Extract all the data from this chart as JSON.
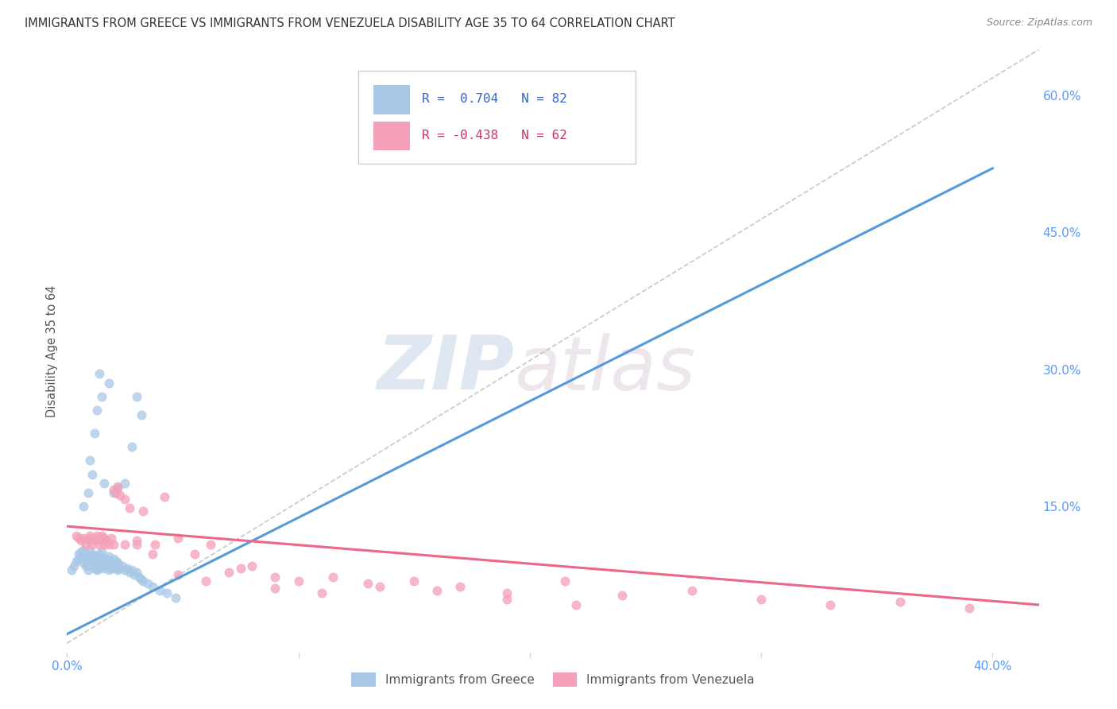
{
  "title": "IMMIGRANTS FROM GREECE VS IMMIGRANTS FROM VENEZUELA DISABILITY AGE 35 TO 64 CORRELATION CHART",
  "source": "Source: ZipAtlas.com",
  "ylabel": "Disability Age 35 to 64",
  "xlim": [
    0.0,
    0.42
  ],
  "ylim": [
    -0.01,
    0.65
  ],
  "grid_color": "#cccccc",
  "background_color": "#ffffff",
  "greece_color": "#a8c8e8",
  "venezuela_color": "#f4a0b8",
  "greece_line_color": "#5599dd",
  "venezuela_line_color": "#ee6688",
  "diag_color": "#bbbbbb",
  "legend_R_greece": "0.704",
  "legend_N_greece": "82",
  "legend_R_venezuela": "-0.438",
  "legend_N_venezuela": "62",
  "watermark_zip": "ZIP",
  "watermark_atlas": "atlas",
  "tick_color": "#5599ff",
  "ylabel_color": "#555555",
  "greece_x": [
    0.002,
    0.003,
    0.004,
    0.005,
    0.005,
    0.006,
    0.006,
    0.007,
    0.007,
    0.007,
    0.008,
    0.008,
    0.008,
    0.009,
    0.009,
    0.009,
    0.01,
    0.01,
    0.01,
    0.01,
    0.011,
    0.011,
    0.011,
    0.012,
    0.012,
    0.012,
    0.013,
    0.013,
    0.013,
    0.014,
    0.014,
    0.014,
    0.015,
    0.015,
    0.015,
    0.016,
    0.016,
    0.017,
    0.017,
    0.018,
    0.018,
    0.018,
    0.019,
    0.019,
    0.02,
    0.02,
    0.021,
    0.021,
    0.022,
    0.022,
    0.023,
    0.024,
    0.025,
    0.026,
    0.027,
    0.028,
    0.029,
    0.03,
    0.031,
    0.032,
    0.033,
    0.035,
    0.037,
    0.04,
    0.043,
    0.047,
    0.007,
    0.009,
    0.01,
    0.011,
    0.012,
    0.013,
    0.014,
    0.015,
    0.016,
    0.018,
    0.02,
    0.022,
    0.025,
    0.028,
    0.03,
    0.032
  ],
  "greece_y": [
    0.08,
    0.085,
    0.09,
    0.092,
    0.098,
    0.095,
    0.1,
    0.088,
    0.095,
    0.102,
    0.085,
    0.092,
    0.098,
    0.08,
    0.088,
    0.095,
    0.085,
    0.09,
    0.095,
    0.102,
    0.085,
    0.092,
    0.098,
    0.082,
    0.088,
    0.095,
    0.08,
    0.088,
    0.095,
    0.082,
    0.09,
    0.098,
    0.085,
    0.092,
    0.1,
    0.082,
    0.09,
    0.085,
    0.092,
    0.08,
    0.088,
    0.095,
    0.082,
    0.09,
    0.085,
    0.092,
    0.082,
    0.09,
    0.08,
    0.088,
    0.082,
    0.085,
    0.08,
    0.082,
    0.078,
    0.08,
    0.075,
    0.078,
    0.072,
    0.07,
    0.068,
    0.065,
    0.062,
    0.058,
    0.055,
    0.05,
    0.15,
    0.165,
    0.2,
    0.185,
    0.23,
    0.255,
    0.295,
    0.27,
    0.175,
    0.285,
    0.165,
    0.17,
    0.175,
    0.215,
    0.27,
    0.25
  ],
  "venezuela_x": [
    0.004,
    0.005,
    0.006,
    0.007,
    0.008,
    0.009,
    0.01,
    0.01,
    0.011,
    0.012,
    0.013,
    0.013,
    0.014,
    0.015,
    0.015,
    0.016,
    0.016,
    0.017,
    0.018,
    0.019,
    0.02,
    0.021,
    0.022,
    0.023,
    0.025,
    0.027,
    0.03,
    0.033,
    0.037,
    0.042,
    0.048,
    0.055,
    0.062,
    0.07,
    0.08,
    0.09,
    0.1,
    0.115,
    0.13,
    0.15,
    0.17,
    0.19,
    0.215,
    0.24,
    0.27,
    0.3,
    0.33,
    0.36,
    0.39,
    0.02,
    0.025,
    0.03,
    0.038,
    0.048,
    0.06,
    0.075,
    0.09,
    0.11,
    0.135,
    0.16,
    0.19,
    0.22
  ],
  "venezuela_y": [
    0.118,
    0.115,
    0.112,
    0.115,
    0.108,
    0.115,
    0.112,
    0.118,
    0.108,
    0.115,
    0.112,
    0.118,
    0.108,
    0.115,
    0.118,
    0.108,
    0.115,
    0.112,
    0.108,
    0.115,
    0.168,
    0.165,
    0.172,
    0.162,
    0.158,
    0.148,
    0.112,
    0.145,
    0.098,
    0.16,
    0.115,
    0.098,
    0.108,
    0.078,
    0.085,
    0.072,
    0.068,
    0.072,
    0.065,
    0.068,
    0.062,
    0.055,
    0.068,
    0.052,
    0.058,
    0.048,
    0.042,
    0.045,
    0.038,
    0.108,
    0.108,
    0.108,
    0.108,
    0.075,
    0.068,
    0.082,
    0.06,
    0.055,
    0.062,
    0.058,
    0.048,
    0.042
  ],
  "greece_line_x": [
    0.0,
    0.4
  ],
  "greece_line_y": [
    0.01,
    0.52
  ],
  "venezuela_line_x": [
    0.0,
    0.42
  ],
  "venezuela_line_y": [
    0.128,
    0.042
  ],
  "diag_line_x": [
    0.0,
    0.42
  ],
  "diag_line_y": [
    0.0,
    0.65
  ]
}
